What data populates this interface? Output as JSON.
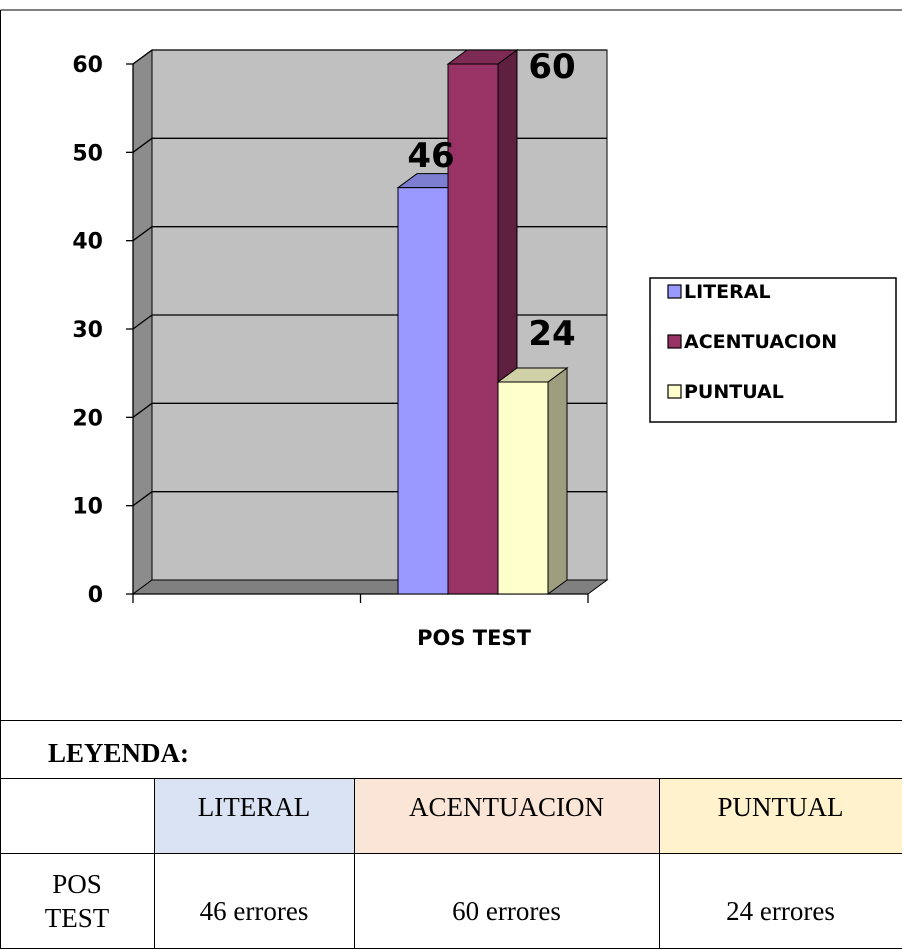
{
  "chart_data": {
    "type": "bar",
    "categories": [
      "POS TEST"
    ],
    "series": [
      {
        "name": "LITERAL",
        "values": [
          46
        ],
        "color": "#9999ff"
      },
      {
        "name": "ACENTUACION",
        "values": [
          60
        ],
        "color": "#993366"
      },
      {
        "name": "PUNTUAL",
        "values": [
          24
        ],
        "color": "#ffffcc"
      }
    ],
    "data_labels": [
      "46",
      "60",
      "24"
    ],
    "title": "",
    "xlabel": "",
    "ylabel": "",
    "ylim": [
      0,
      60
    ],
    "yticks": [
      "0",
      "10",
      "20",
      "30",
      "40",
      "50",
      "60"
    ],
    "grid": true,
    "legend_position": "right",
    "style": "3d-clustered-column",
    "wall_color": "#c0c0c0"
  },
  "table": {
    "title": "LEYENDA:",
    "headers": [
      "",
      "LITERAL",
      "ACENTUACION",
      "PUNTUAL"
    ],
    "header_colors": [
      "#ffffff",
      "#dae3f3",
      "#fbe5d6",
      "#fff2cc"
    ],
    "row": {
      "label": "POS TEST",
      "values": [
        "46 errores",
        "60 errores",
        "24 errores"
      ]
    }
  }
}
